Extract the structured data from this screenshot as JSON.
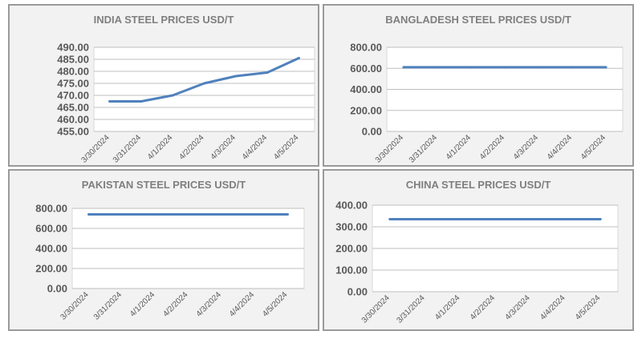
{
  "chart_data": [
    {
      "type": "line",
      "title": "INDIA STEEL PRICES USD/T",
      "categories": [
        "3/30/2024",
        "3/31/2024",
        "4/1/2024",
        "4/2/2024",
        "4/3/2024",
        "4/4/2024",
        "4/5/2024"
      ],
      "series": [
        {
          "values": [
            467.5,
            467.5,
            470,
            475,
            478,
            479.5,
            485.5
          ]
        }
      ],
      "ylim": [
        455,
        490
      ],
      "yticks": [
        "490.00",
        "485.00",
        "480.00",
        "475.00",
        "470.00",
        "465.00",
        "460.00",
        "455.00"
      ],
      "grid": true,
      "color": "#4f81bd"
    },
    {
      "type": "line",
      "title": "BANGLADESH STEEL PRICES USD/T",
      "categories": [
        "3/30/2024",
        "3/31/2024",
        "4/1/2024",
        "4/2/2024",
        "4/3/2024",
        "4/4/2024",
        "4/5/2024"
      ],
      "series": [
        {
          "values": [
            610,
            610,
            610,
            610,
            610,
            610,
            610
          ]
        }
      ],
      "ylim": [
        0,
        800
      ],
      "yticks": [
        "800.00",
        "600.00",
        "400.00",
        "200.00",
        "0.00"
      ],
      "grid": true,
      "color": "#4f81bd"
    },
    {
      "type": "line",
      "title": "PAKISTAN STEEL PRICES USD/T",
      "categories": [
        "3/30/2024",
        "3/31/2024",
        "4/1/2024",
        "4/2/2024",
        "4/3/2024",
        "4/4/2024",
        "4/5/2024"
      ],
      "series": [
        {
          "values": [
            740,
            740,
            740,
            740,
            740,
            740,
            740
          ]
        }
      ],
      "ylim": [
        0,
        800
      ],
      "yticks": [
        "800.00",
        "600.00",
        "400.00",
        "200.00",
        "0.00"
      ],
      "grid": true,
      "color": "#4f81bd"
    },
    {
      "type": "line",
      "title": "CHINA STEEL PRICES USD/T",
      "categories": [
        "3/30/2024",
        "3/31/2024",
        "4/1/2024",
        "4/2/2024",
        "4/3/2024",
        "4/4/2024",
        "4/5/2024"
      ],
      "series": [
        {
          "values": [
            335,
            335,
            335,
            335,
            335,
            335,
            335
          ]
        }
      ],
      "ylim": [
        0,
        400
      ],
      "yticks": [
        "400.00",
        "300.00",
        "200.00",
        "100.00",
        "0.00"
      ],
      "grid": true,
      "color": "#4f81bd"
    }
  ]
}
